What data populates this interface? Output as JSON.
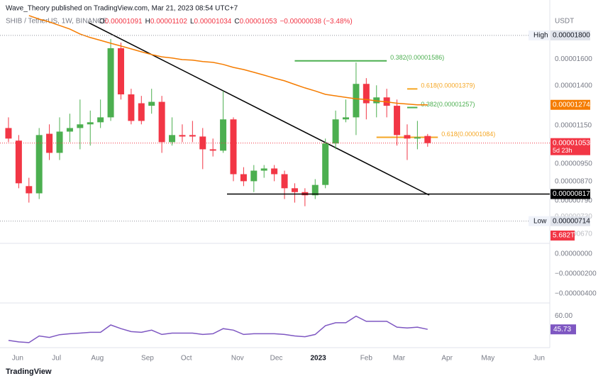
{
  "header": {
    "publisher": "Wave_Theory published on TradingView.com, Mar 21, 2023 08:54 UTC+7",
    "symbol": "SHIB / TetherUS, 1W, BINANCE",
    "ohlc": [
      {
        "key": "O",
        "value": "0.00001091"
      },
      {
        "key": "H",
        "value": "0.00001102"
      },
      {
        "key": "L",
        "value": "0.00001034"
      },
      {
        "key": "C",
        "value": "0.00001053"
      }
    ],
    "change": "−0.00000038 (−3.48%)",
    "currency": "USDT"
  },
  "footer": "TradingView",
  "chart_data": {
    "type": "candlestick",
    "log_scale": true,
    "xlim": [
      -0.83,
      52.95
    ],
    "xticks": [
      {
        "value": 0.9,
        "label": "Jun"
      },
      {
        "value": 4.7,
        "label": "Jul"
      },
      {
        "value": 8.7,
        "label": "Aug"
      },
      {
        "value": 13.6,
        "label": "Sep"
      },
      {
        "value": 17.4,
        "label": "Oct"
      },
      {
        "value": 22.4,
        "label": "Nov"
      },
      {
        "value": 26.2,
        "label": "Dec"
      },
      {
        "value": 30.3,
        "label": "2023"
      },
      {
        "value": 35.0,
        "label": "Feb"
      },
      {
        "value": 38.2,
        "label": "Mar"
      },
      {
        "value": 42.9,
        "label": "Apr"
      },
      {
        "value": 46.9,
        "label": "May"
      },
      {
        "value": 51.9,
        "label": "Jun"
      }
    ],
    "ylim": [
      6.46e-06,
      2.147e-05
    ],
    "yticks": [
      {
        "value": 1.6e-05,
        "label": "0.00001600"
      },
      {
        "value": 1.4e-05,
        "label": "0.00001400"
      },
      {
        "value": 1.15e-05,
        "label": "0.00001150"
      },
      {
        "value": 9.5e-06,
        "label": "0.00000950"
      },
      {
        "value": 8.7e-06,
        "label": "0.00000870"
      },
      {
        "value": 7.9e-06,
        "label": "0.00000790"
      },
      {
        "value": 7.3e-06,
        "label": "0.00000730"
      },
      {
        "value": 6.7e-06,
        "label": "0.00000670"
      }
    ],
    "levels": [
      {
        "name": "High",
        "value": 1.8e-05,
        "label": "0.00001800",
        "color": "#e0e3eb"
      },
      {
        "value": 1.274e-05,
        "label": "0.00001274",
        "color": "#f57c00"
      },
      {
        "value": 1.053e-05,
        "label": "0.00001053",
        "color": "#f23645",
        "countdown": "5d 23h"
      },
      {
        "value": 8.17e-06,
        "label": "0.00000817",
        "color": "#000000"
      },
      {
        "name": "Low",
        "value": 7.14e-06,
        "label": "0.00000714",
        "color": "#e0e3eb"
      }
    ],
    "volume_label": "5.682T",
    "up_color": "#4caf50",
    "down_color": "#f23645",
    "open": [
      1.135e-05,
      1.066e-05,
      8.5e-06,
      8.2e-06,
      1.103e-05,
      1.003e-05,
      1.115e-05,
      1.135e-05,
      1.156e-05,
      1.168e-05,
      1.197e-05,
      1.689e-05,
      1.342e-05,
      1.284e-05,
      1.268e-05,
      1.293e-05,
      1.058e-05,
      1.096e-05,
      1.096e-05,
      1.088e-05,
      1.021e-05,
      1.014e-05,
      1.185e-05,
      9.02e-06,
      8.71e-06,
      9.18e-06,
      9.28e-06,
      9.02e-06,
      8.41e-06,
      8.25e-06,
      8.12e-06,
      8.55e-06,
      1.051e-05,
      1.185e-05,
      1.197e-05,
      1.414e-05,
      1.284e-05,
      1.322e-05,
      1.268e-05,
      1.096e-05,
      1.077e-05,
      1.091e-05
    ],
    "high": [
      1.197e-05,
      1.096e-05,
      8.86e-06,
      1.135e-05,
      1.156e-05,
      1.197e-05,
      1.219e-05,
      1.308e-05,
      1.238e-05,
      1.308e-05,
      1.768e-05,
      1.737e-05,
      1.38e-05,
      1.332e-05,
      1.38e-05,
      1.332e-05,
      1.197e-05,
      1.156e-05,
      1.176e-05,
      1.135e-05,
      1.077e-05,
      1.365e-05,
      1.197e-05,
      9.34e-06,
      9.44e-06,
      9.44e-06,
      9.44e-06,
      9.18e-06,
      8.62e-06,
      8.41e-06,
      8.8e-06,
      1.077e-05,
      1.238e-05,
      1.308e-05,
      1.573e-05,
      1.455e-05,
      1.404e-05,
      1.38e-05,
      1.308e-05,
      1.156e-05,
      1.176e-05,
      1.102e-05
    ],
    "low": [
      1.058e-05,
      8.41e-06,
      7.83e-06,
      7.97e-06,
      9.68e-06,
      9.68e-06,
      1.058e-05,
      1.021e-05,
      1.04e-05,
      1.135e-05,
      1.176e-05,
      1.308e-05,
      1.156e-05,
      1.156e-05,
      1.219e-05,
      1.003e-05,
      1.04e-05,
      1.058e-05,
      1.058e-05,
      9.25e-06,
      9.85e-06,
      1.003e-05,
      8.71e-06,
      8.5e-06,
      8.25e-06,
      8.86e-06,
      8.71e-06,
      7.97e-06,
      7.83e-06,
      7.69e-06,
      7.97e-06,
      8.41e-06,
      1.021e-05,
      1.168e-05,
      1.096e-05,
      1.185e-05,
      1.197e-05,
      1.197e-05,
      1.04e-05,
      9.68e-06,
      1.021e-05,
      1.034e-05
    ],
    "close": [
      1.077e-05,
      8.62e-06,
      8.2e-06,
      1.096e-05,
      1.003e-05,
      1.115e-05,
      1.135e-05,
      1.156e-05,
      1.168e-05,
      1.197e-05,
      1.689e-05,
      1.342e-05,
      1.176e-05,
      1.176e-05,
      1.293e-05,
      1.058e-05,
      1.096e-05,
      1.088e-05,
      1.088e-05,
      1.021e-05,
      1.014e-05,
      1.185e-05,
      9.02e-06,
      8.71e-06,
      9.18e-06,
      9.28e-06,
      9.02e-06,
      8.41e-06,
      8.25e-06,
      8.12e-06,
      8.55e-06,
      1.051e-05,
      1.185e-05,
      1.197e-05,
      1.414e-05,
      1.284e-05,
      1.322e-05,
      1.268e-05,
      1.096e-05,
      1.077e-05,
      1.084e-05,
      1.053e-05
    ],
    "ma": {
      "color": "#f57c00",
      "values": [
        null,
        null,
        1.987e-05,
        1.952e-05,
        1.925e-05,
        1.891e-05,
        1.858e-05,
        1.813e-05,
        1.781e-05,
        1.756e-05,
        1.731e-05,
        1.707e-05,
        1.683e-05,
        1.659e-05,
        1.636e-05,
        1.618e-05,
        1.608e-05,
        1.596e-05,
        1.591e-05,
        1.58e-05,
        1.574e-05,
        1.558e-05,
        1.535e-05,
        1.519e-05,
        1.498e-05,
        1.477e-05,
        1.455e-05,
        1.436e-05,
        1.41e-05,
        1.386e-05,
        1.365e-05,
        1.342e-05,
        1.332e-05,
        1.322e-05,
        1.313e-05,
        1.308e-05,
        1.299e-05,
        1.293e-05,
        1.284e-05,
        1.279e-05,
        1.274e-05,
        1.274e-05
      ]
    },
    "fibs": [
      {
        "label": "0.382(0.00001586)",
        "value": 1.586e-05,
        "color": "#4caf50",
        "from": 28,
        "to": 37
      },
      {
        "label": "0.618(0.00001379)",
        "value": 1.379e-05,
        "color": "#f5a623",
        "from": 39,
        "to": 40
      },
      {
        "label": "0.382(0.00001257)",
        "value": 1.257e-05,
        "color": "#4caf50",
        "from": 39,
        "to": 40
      },
      {
        "label": "0.618(0.00001084)",
        "value": 1.084e-05,
        "color": "#f5a623",
        "from": 36,
        "to": 42
      }
    ],
    "macd_axis": [
      "0.00000000",
      "−0.00000200",
      "−0.00000400"
    ],
    "rsi": {
      "color": "#7e57c2",
      "ylim": [
        27.5,
        73.5
      ],
      "yticks": [
        {
          "value": 60,
          "label": "60.00"
        },
        {
          "value": 45.73,
          "label": "45.73"
        }
      ],
      "values": [
        33.8,
        32.2,
        31.4,
        38.6,
        37,
        40,
        41,
        41.7,
        42.5,
        42.5,
        50.5,
        46.5,
        43.3,
        42.5,
        44.9,
        40.2,
        41.7,
        41.7,
        41.7,
        40.2,
        41,
        46.5,
        44.9,
        40.2,
        41,
        41,
        41,
        40.2,
        38.6,
        37.8,
        40.2,
        49.7,
        52.9,
        52.9,
        60,
        54.4,
        54.4,
        54.4,
        48.1,
        47.3,
        48.1,
        45.73
      ]
    }
  }
}
